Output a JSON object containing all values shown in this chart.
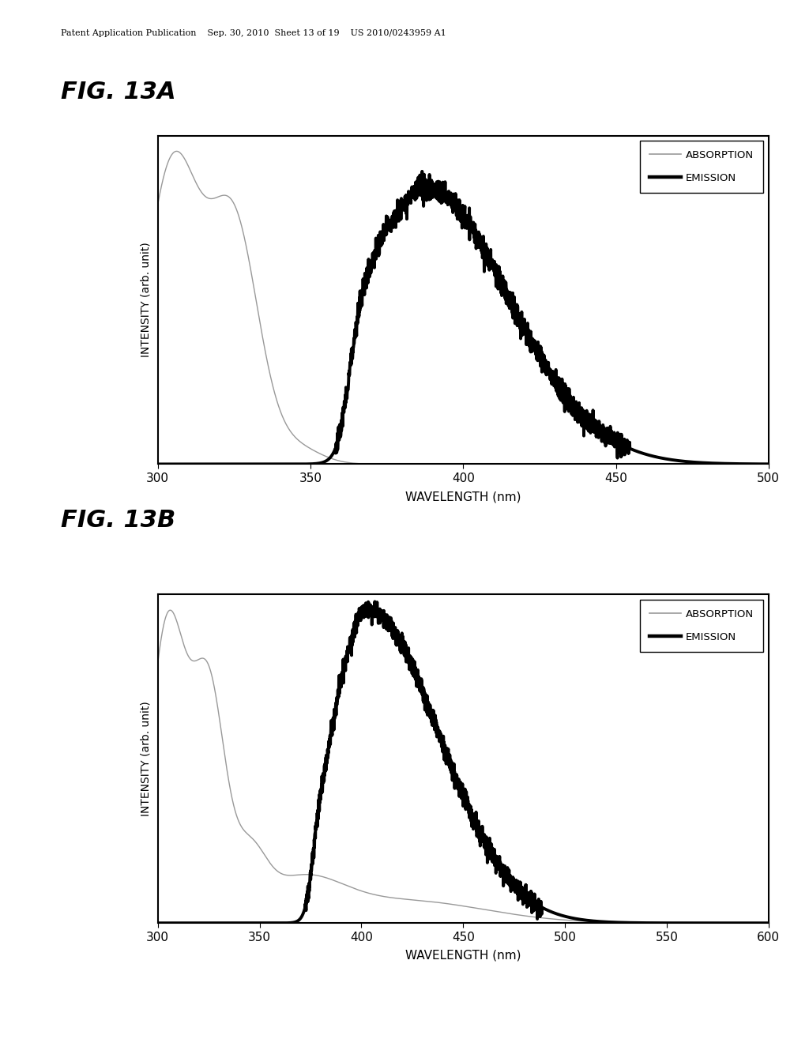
{
  "fig13a": {
    "title": "FIG. 13A",
    "xlabel": "WAVELENGTH (nm)",
    "ylabel": "INTENSITY (arb. unit)",
    "xlim": [
      300,
      500
    ],
    "xticks": [
      300,
      350,
      400,
      450,
      500
    ],
    "legend_labels": [
      "ABSORPTION",
      "EMISSION"
    ]
  },
  "fig13b": {
    "title": "FIG. 13B",
    "xlabel": "WAVELENGTH (nm)",
    "ylabel": "INTENSITY (arb. unit)",
    "xlim": [
      300,
      600
    ],
    "xticks": [
      300,
      350,
      400,
      450,
      500,
      550,
      600
    ],
    "legend_labels": [
      "ABSORPTION",
      "EMISSION"
    ]
  },
  "header_text": "Patent Application Publication    Sep. 30, 2010  Sheet 13 of 19    US 2010/0243959 A1",
  "background_color": "#ffffff",
  "absorption_color": "#999999",
  "emission_color": "#000000",
  "absorption_linewidth": 1.0,
  "emission_linewidth": 2.8
}
